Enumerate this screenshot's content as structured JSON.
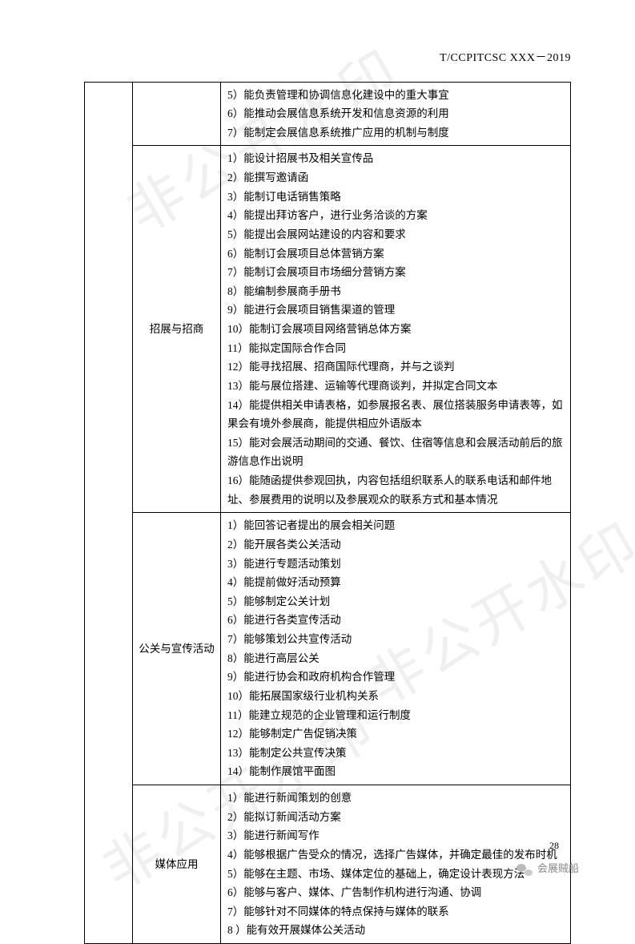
{
  "header": "T/CCPITCSC XXX－2019",
  "page_number": "28",
  "footer_brand": "会展贼船",
  "watermark_text": "非公开水印",
  "table": {
    "rows": [
      {
        "label": "",
        "toprow": true,
        "items": [
          "5）能负责管理和协调信息化建设中的重大事宜",
          "6）能推动会展信息系统开发和信息资源的利用",
          "7）能制定会展信息系统推广应用的机制与制度"
        ]
      },
      {
        "label": "招展与招商",
        "items": [
          "1）能设计招展书及相关宣传品",
          "2）能撰写邀请函",
          "3）能制订电话销售策略",
          "4）能提出拜访客户，进行业务洽谈的方案",
          "5）能提出会展网站建设的内容和要求",
          "6）能制订会展项目总体营销方案",
          "7）能制订会展项目市场细分营销方案",
          "8）能编制参展商手册书",
          "9）能进行会展项目销售渠道的管理",
          "10）能制订会展项目网络营销总体方案",
          "11）能拟定国际合作合同",
          "12）能寻找招展、招商国际代理商，并与之谈判",
          "13）能与展位搭建、运输等代理商谈判，并拟定合同文本",
          "14）能提供相关申请表格，如参展报名表、展位搭装服务申请表等，如果会有境外参展商，能提供相应外语版本",
          "15）能对会展活动期间的交通、餐饮、住宿等信息和会展活动前后的旅游信息作出说明",
          "16）能随函提供参观回执，内容包括组织联系人的联系电话和邮件地址、参展费用的说明以及参展观众的联系方式和基本情况"
        ]
      },
      {
        "label": "公关与宣传活动",
        "items": [
          "1）能回答记者提出的展会相关问题",
          "2）能开展各类公关活动",
          "3）能进行专题活动策划",
          "4）能提前做好活动预算",
          "5）能够制定公关计划",
          "6）能进行各类宣传活动",
          "7）能够策划公共宣传活动",
          "8）能进行高层公关",
          "9）能进行协会和政府机构合作管理",
          "10）能拓展国家级行业机构关系",
          "11）能建立规范的企业管理和运行制度",
          "12）能够制定广告促销决策",
          "13）能制定公共宣传决策",
          "14）能制作展馆平面图"
        ]
      },
      {
        "label": "媒体应用",
        "items": [
          "1）能进行新闻策划的创意",
          "2）能拟订新闻活动方案",
          "3）能进行新闻写作",
          "4）能够根据广告受众的情况，选择广告媒体，并确定最佳的发布时机",
          "5）能够在主题、市场、媒体定位的基础上，确定设计表现方法",
          "6）能够与客户、媒体、广告制作机构进行沟通、协调",
          "7）能够针对不同媒体的特点保持与媒体的联系",
          "8 ）能有效开展媒体公关活动"
        ]
      }
    ]
  }
}
